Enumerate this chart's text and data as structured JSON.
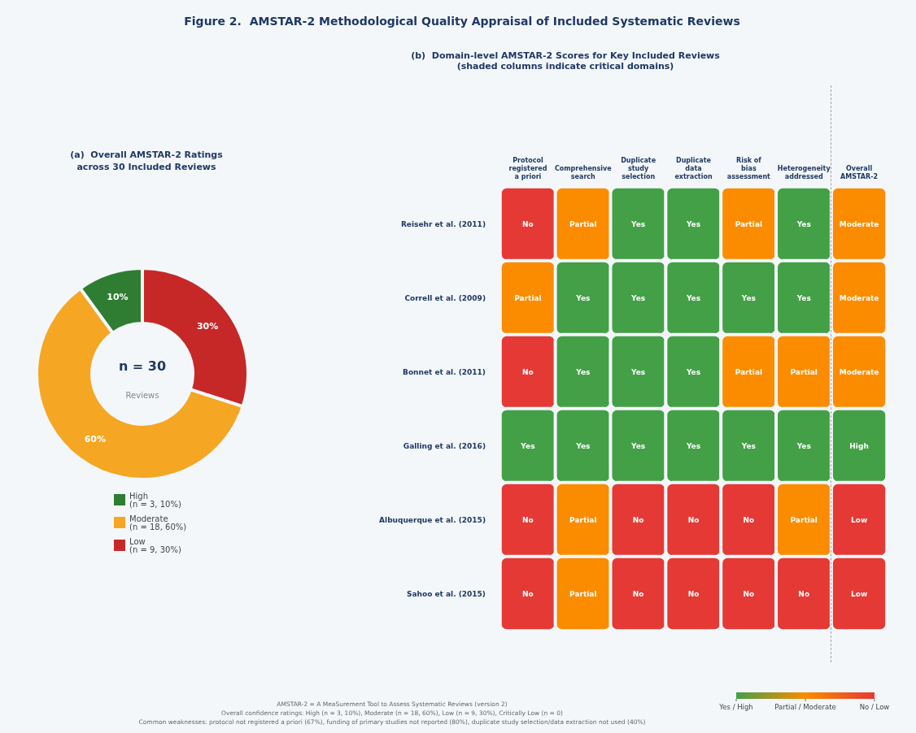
{
  "chart_data": [
    {
      "type": "donut",
      "title": "Figure 2.  AMSTAR-2 Methodological Quality Appraisal of Included Systematic Reviews",
      "subtitle": "(a)  Overall AMSTAR-2 Ratings\nacross 30 Included Reviews",
      "categories": [
        "High\n(n = 3, 10%)",
        "Moderate\n(n = 18, 60%)",
        "Low\n(n = 9, 30%)"
      ],
      "values": [
        10,
        60,
        30
      ],
      "colors": [
        "#2e7d32",
        "#f5a623",
        "#c62828"
      ],
      "value_labels": [
        "10%",
        "60%",
        "30%"
      ],
      "annotations": [
        "n = 30",
        "Reviews"
      ],
      "legend": "bottom"
    },
    {
      "type": "heatmap",
      "title": "(b)  Domain-level AMSTAR-2 Scores for Key Included Reviews",
      "subtitle": "(shaded columns indicate critical domains)",
      "categories": [
        "Protocol\nregistered\na priori",
        "Comprehensive\nsearch",
        "Duplicate\nstudy\nselection",
        "Duplicate\ndata\nextraction",
        "Risk of\nbias\nassessment",
        "Heterogeneity\naddressed",
        "Overall\nAMSTAR-2"
      ],
      "y_categories": [
        "Reisehr et al. (2011)",
        "Correll et al. (2009)",
        "Bonnet et al. (2011)",
        "Galling et al. (2016)",
        "Albuquerque et al. (2015)",
        "Sahoo et al. (2015)"
      ],
      "cells": [
        [
          2,
          1,
          0,
          0,
          1,
          0,
          1
        ],
        [
          1,
          0,
          0,
          0,
          0,
          0,
          1
        ],
        [
          2,
          0,
          0,
          0,
          1,
          1,
          1
        ],
        [
          0,
          0,
          0,
          0,
          0,
          0,
          0
        ],
        [
          2,
          1,
          2,
          2,
          2,
          1,
          2
        ],
        [
          2,
          1,
          2,
          2,
          2,
          2,
          2
        ]
      ],
      "cell_labels": [
        [
          "No",
          "Partial",
          "Yes",
          "Yes",
          "Partial",
          "Yes",
          "Moderate"
        ],
        [
          "Partial",
          "Yes",
          "Yes",
          "Yes",
          "Yes",
          "Yes",
          "Moderate"
        ],
        [
          "No",
          "Yes",
          "Yes",
          "Yes",
          "Partial",
          "Partial",
          "Moderate"
        ],
        [
          "Yes",
          "Yes",
          "Yes",
          "Yes",
          "Yes",
          "Yes",
          "High"
        ],
        [
          "No",
          "Partial",
          "No",
          "No",
          "No",
          "Partial",
          "Low"
        ],
        [
          "No",
          "Partial",
          "No",
          "No",
          "No",
          "No",
          "Low"
        ]
      ],
      "clim": [
        0,
        2
      ],
      "cticks": [
        {
          "value": 0,
          "label": "Yes / High"
        },
        {
          "value": 1,
          "label": "Partial / Moderate"
        },
        {
          "value": 2,
          "label": "No / Low"
        }
      ],
      "colors": [
        "#43a047",
        "#fb8c00",
        "#e53935"
      ],
      "annotations": [
        "AMSTAR-2 = A MeaSurement Tool to Assess Systematic Reviews (version 2)",
        "Overall confidence ratings: High (n = 3, 10%), Moderate (n = 18, 60%), Low (n = 9, 30%), Critically Low (n = 0)",
        "Common weaknesses: protocol not registered a priori (67%), funding of primary studies not reported (80%), duplicate study selection/data extraction not used (40%)"
      ]
    }
  ]
}
